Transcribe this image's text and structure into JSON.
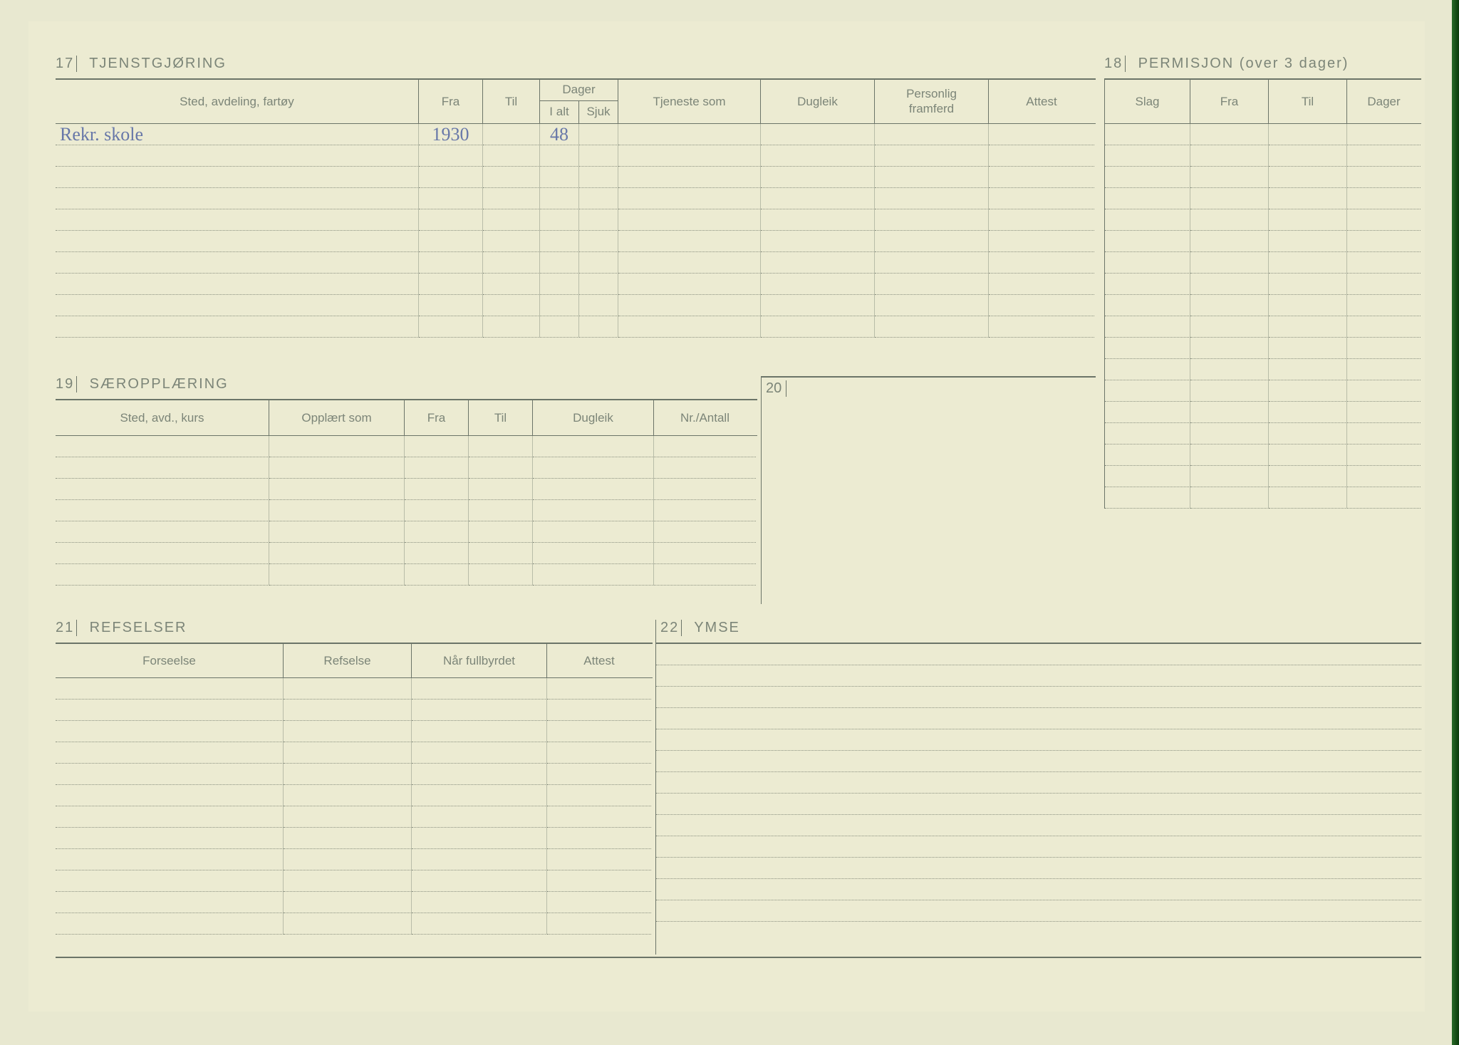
{
  "colors": {
    "paper": "#ecebd2",
    "ink_print": "#7c8578",
    "ink_hand": "#6777a8",
    "rule_solid": "#6b7468",
    "rule_dotted": "#8a9080",
    "col_divider": "#b8bca8",
    "spine": "#0a5a0a"
  },
  "sections": {
    "s17": {
      "num": "17",
      "title": "TJENSTGJØRING",
      "columns": {
        "sted": "Sted, avdeling, fartøy",
        "fra": "Fra",
        "til": "Til",
        "dager": "Dager",
        "ialt": "I alt",
        "sjuk": "Sjuk",
        "tjeneste": "Tjeneste som",
        "dugleik": "Dugleik",
        "personlig1": "Personlig",
        "personlig2": "framferd",
        "attest": "Attest"
      },
      "rows": [
        {
          "sted": "Rekr. skole",
          "fra": "1930",
          "til": "",
          "ialt": "48",
          "sjuk": "",
          "tjeneste": "",
          "dugleik": "",
          "personlig": "",
          "attest": ""
        },
        {},
        {},
        {},
        {},
        {},
        {},
        {},
        {},
        {}
      ]
    },
    "s18": {
      "num": "18",
      "title": "PERMISJON (over 3 dager)",
      "columns": {
        "slag": "Slag",
        "fra": "Fra",
        "til": "Til",
        "dager": "Dager"
      },
      "row_count": 18
    },
    "s19": {
      "num": "19",
      "title": "SÆROPPLÆRING",
      "columns": {
        "sted": "Sted, avd., kurs",
        "opplart": "Opplært som",
        "fra": "Fra",
        "til": "Til",
        "dugleik": "Dugleik",
        "nr": "Nr./Antall"
      },
      "row_count": 7
    },
    "s20": {
      "num": "20"
    },
    "s21": {
      "num": "21",
      "title": "REFSELSER",
      "columns": {
        "forseelse": "Forseelse",
        "refselse": "Refselse",
        "nar": "Når fullbyrdet",
        "attest": "Attest"
      },
      "row_count": 12
    },
    "s22": {
      "num": "22",
      "title": "YMSE",
      "row_count": 13
    }
  }
}
